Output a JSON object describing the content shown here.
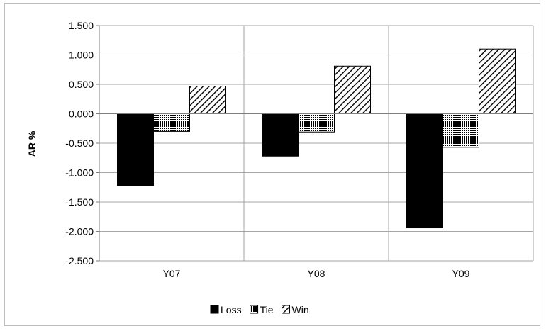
{
  "chart_data": {
    "type": "bar",
    "categories": [
      "Y07",
      "Y08",
      "Y09"
    ],
    "series": [
      {
        "name": "Loss",
        "values": [
          -1.22,
          -0.72,
          -1.94
        ],
        "color": "#000000",
        "pattern": "solid"
      },
      {
        "name": "Tie",
        "values": [
          -0.3,
          -0.31,
          -0.57
        ],
        "color": "#000000",
        "pattern": "dotted-grid"
      },
      {
        "name": "Win",
        "values": [
          0.47,
          0.81,
          1.1
        ],
        "color": "#000000",
        "pattern": "diagonal-hatch"
      }
    ],
    "ylabel": "AR %",
    "xlabel": "",
    "ylim": [
      -2.5,
      1.5
    ],
    "yticks": [
      "1.500",
      "1.000",
      "0.500",
      "0.000",
      "-0.500",
      "-1.000",
      "-1.500",
      "-2.000",
      "-2.500"
    ],
    "grid": "horizontal and vertical",
    "legend_position": "bottom"
  }
}
